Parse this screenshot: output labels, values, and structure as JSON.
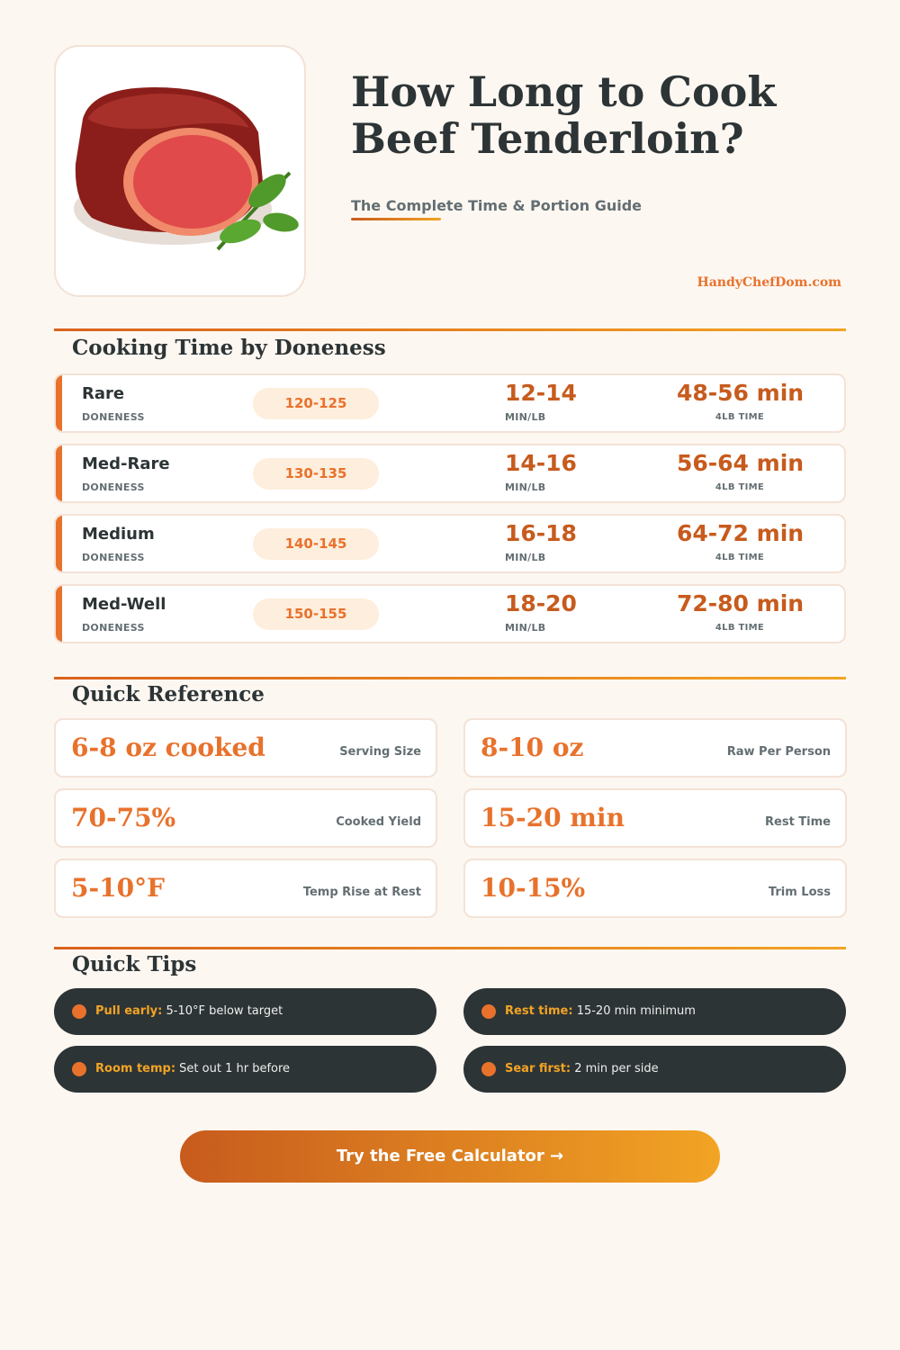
{
  "header": {
    "title_line1": "How Long to Cook",
    "title_line2": "Beef Tenderloin?",
    "subtitle": "The Complete Time & Portion Guide",
    "site": "HandyChefDom.com"
  },
  "doneness": {
    "heading": "Cooking Time by Doneness",
    "doneness_label": "DONENESS",
    "minlb_label": "MIN/LB",
    "total_label": "4LB TIME",
    "rows": [
      {
        "name": "Rare",
        "temp": "120-125",
        "minlb": "12-14",
        "total": "48-56 min"
      },
      {
        "name": "Med-Rare",
        "temp": "130-135",
        "minlb": "14-16",
        "total": "56-64 min"
      },
      {
        "name": "Medium",
        "temp": "140-145",
        "minlb": "16-18",
        "total": "64-72 min"
      },
      {
        "name": "Med-Well",
        "temp": "150-155",
        "minlb": "18-20",
        "total": "72-80 min"
      }
    ]
  },
  "reference": {
    "heading": "Quick Reference",
    "cards": [
      {
        "value": "6-8 oz cooked",
        "label": "Serving Size"
      },
      {
        "value": "8-10 oz",
        "label": "Raw Per Person"
      },
      {
        "value": "70-75%",
        "label": "Cooked Yield"
      },
      {
        "value": "15-20 min",
        "label": "Rest Time"
      },
      {
        "value": "5-10°F",
        "label": "Temp Rise at Rest"
      },
      {
        "value": "10-15%",
        "label": "Trim Loss"
      }
    ]
  },
  "tips": {
    "heading": "Quick Tips",
    "items": [
      {
        "key": "Pull early:",
        "text": "5-10°F below target"
      },
      {
        "key": "Rest time:",
        "text": "15-20 min minimum"
      },
      {
        "key": "Room temp:",
        "text": "Set out 1 hr before"
      },
      {
        "key": "Sear first:",
        "text": "2 min per side"
      }
    ]
  },
  "cta": {
    "label": "Try the Free Calculator →"
  }
}
